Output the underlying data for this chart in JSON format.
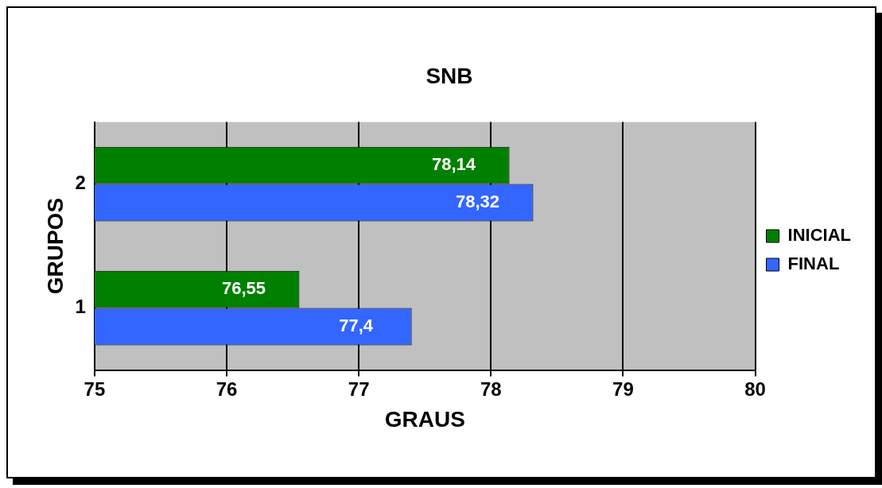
{
  "chart_data": {
    "type": "bar",
    "orientation": "horizontal",
    "title": "SNB",
    "xlabel": "GRAUS",
    "ylabel": "GRUPOS",
    "categories": [
      "2",
      "1"
    ],
    "series": [
      {
        "name": "INICIAL",
        "color": "#008000",
        "values": [
          78.14,
          76.55
        ],
        "value_labels": [
          "78,14",
          "76,55"
        ]
      },
      {
        "name": "FINAL",
        "color": "#3366ff",
        "values": [
          78.32,
          77.4
        ],
        "value_labels": [
          "78,32",
          "77,4"
        ]
      }
    ],
    "xlim": [
      75,
      80
    ],
    "xticks": [
      75,
      76,
      77,
      78,
      79,
      80
    ],
    "grid": "x",
    "legend": "right"
  }
}
